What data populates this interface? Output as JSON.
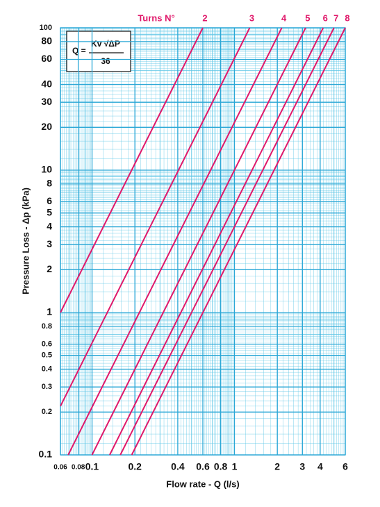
{
  "chart_data": {
    "type": "line",
    "log_x": true,
    "log_y": true,
    "grid": true,
    "legend_title": "Turns N°",
    "formula": {
      "lhs": "Q =",
      "numerator": "Kv √ΔP",
      "denominator": "36"
    },
    "x_label": "Flow rate - Q (l/s)",
    "y_label": "Pressure Loss  - Δp (kPa)",
    "xlim": [
      0.06,
      6
    ],
    "ylim": [
      0.1,
      100
    ],
    "xticks": [
      0.06,
      0.08,
      0.1,
      0.2,
      0.4,
      0.6,
      0.8,
      1,
      2,
      3,
      4,
      6
    ],
    "yticks": [
      0.1,
      0.2,
      0.3,
      0.4,
      0.5,
      0.6,
      0.8,
      1,
      2,
      3,
      4,
      5,
      6,
      8,
      10,
      20,
      30,
      40,
      60,
      80,
      100
    ],
    "series": [
      {
        "name": "2",
        "color": "#e0186a",
        "x": [
          0.06,
          0.6
        ],
        "values": [
          1,
          100
        ]
      },
      {
        "name": "3",
        "color": "#e0186a",
        "x": [
          0.06,
          1.28
        ],
        "values": [
          0.22,
          100
        ]
      },
      {
        "name": "4",
        "color": "#e0186a",
        "x": [
          0.068,
          2.15
        ],
        "values": [
          0.1,
          100
        ]
      },
      {
        "name": "5",
        "color": "#e0186a",
        "x": [
          0.1,
          3.16
        ],
        "values": [
          0.1,
          100
        ]
      },
      {
        "name": "6",
        "color": "#e0186a",
        "x": [
          0.133,
          4.2
        ],
        "values": [
          0.1,
          100
        ]
      },
      {
        "name": "7",
        "color": "#e0186a",
        "x": [
          0.158,
          5
        ],
        "values": [
          0.1,
          100
        ]
      },
      {
        "name": "8",
        "color": "#e0186a",
        "x": [
          0.19,
          6
        ],
        "values": [
          0.1,
          100
        ]
      }
    ]
  }
}
